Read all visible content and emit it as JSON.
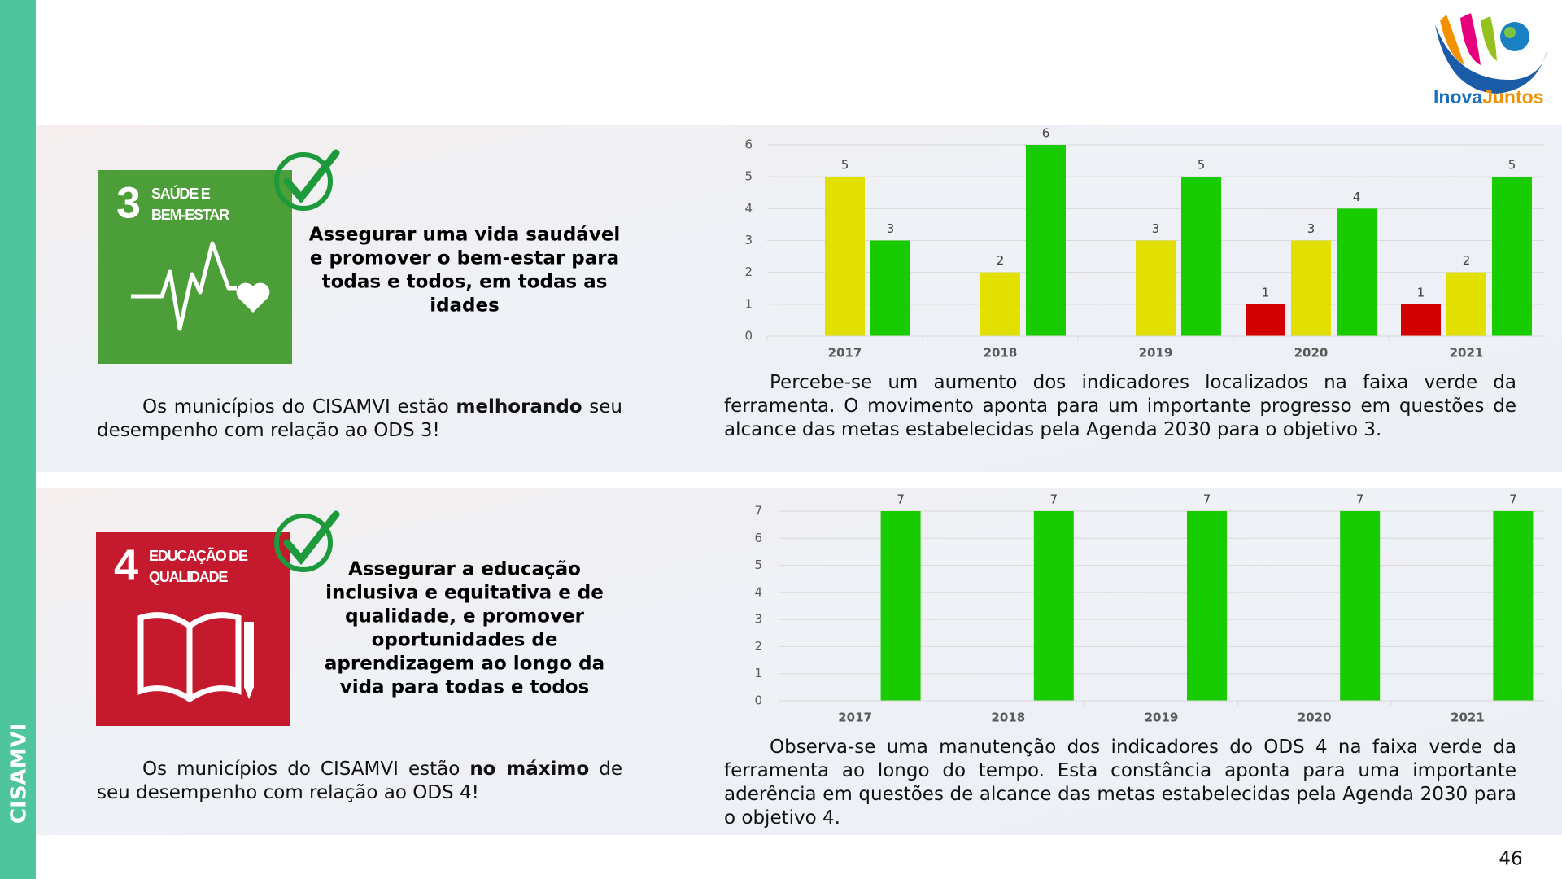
{
  "sidebar_label": "CISAMVI",
  "logo": {
    "part1": "Inova",
    "part2": "Juntos"
  },
  "page_number": "46",
  "sections": [
    {
      "sdg_tile": {
        "number": "3",
        "label_lines": [
          "SAÚDE E",
          "BEM-ESTAR"
        ],
        "color": "#4c9f38"
      },
      "goal_lines": [
        "Assegurar uma vida saudável",
        "e promover o bem-estar para",
        "todas e todos, em todas as",
        "idades"
      ],
      "summary": [
        {
          "text": "Os municípios do CISAMVI estão "
        },
        {
          "text": "melhorando",
          "bold": true
        },
        {
          "text": " seu desempenho com relação ao ODS 3!"
        }
      ],
      "analysis": "Percebe-se um aumento dos indicadores localizados na faixa verde da ferramenta. O movimento aponta para um importante progresso em questões de alcance das metas estabelecidas pela Agenda 2030 para o objetivo 3."
    },
    {
      "sdg_tile": {
        "number": "4",
        "label_lines": [
          "EDUCAÇÃO DE",
          "QUALIDADE"
        ],
        "color": "#c5192d"
      },
      "goal_lines": [
        "Assegurar a educação",
        "inclusiva e equitativa e de",
        "qualidade, e promover",
        "oportunidades de",
        "aprendizagem ao longo da",
        "vida para todas e todos"
      ],
      "summary": [
        {
          "text": "Os municípios do CISAMVI estão "
        },
        {
          "text": "no máximo",
          "bold": true
        },
        {
          "text": " de seu desempenho com relação ao ODS 4!"
        }
      ],
      "analysis": "Observa-se uma manutenção dos indicadores do ODS 4 na faixa verde da ferramenta ao longo do tempo. Esta constância aponta para uma importante aderência em questões de alcance das metas estabelecidas pela Agenda 2030 para o objetivo 4."
    }
  ],
  "chart_data": [
    {
      "type": "bar",
      "categories": [
        "2017",
        "2018",
        "2019",
        "2020",
        "2021"
      ],
      "series": [
        {
          "color": "#d40000",
          "values": [
            null,
            null,
            null,
            1,
            1
          ]
        },
        {
          "color": "#e2e000",
          "values": [
            5,
            2,
            3,
            3,
            2
          ]
        },
        {
          "color": "#18cc00",
          "values": [
            3,
            6,
            5,
            4,
            5
          ]
        }
      ],
      "ylim": [
        0,
        6
      ],
      "yticks": [
        0,
        1,
        2,
        3,
        4,
        5,
        6
      ],
      "grid": true
    },
    {
      "type": "bar",
      "categories": [
        "2017",
        "2018",
        "2019",
        "2020",
        "2021"
      ],
      "series": [
        {
          "color": "#18cc00",
          "values": [
            7,
            7,
            7,
            7,
            7
          ]
        }
      ],
      "ylim": [
        0,
        7
      ],
      "yticks": [
        0,
        1,
        2,
        3,
        4,
        5,
        6,
        7
      ],
      "grid": true
    }
  ]
}
